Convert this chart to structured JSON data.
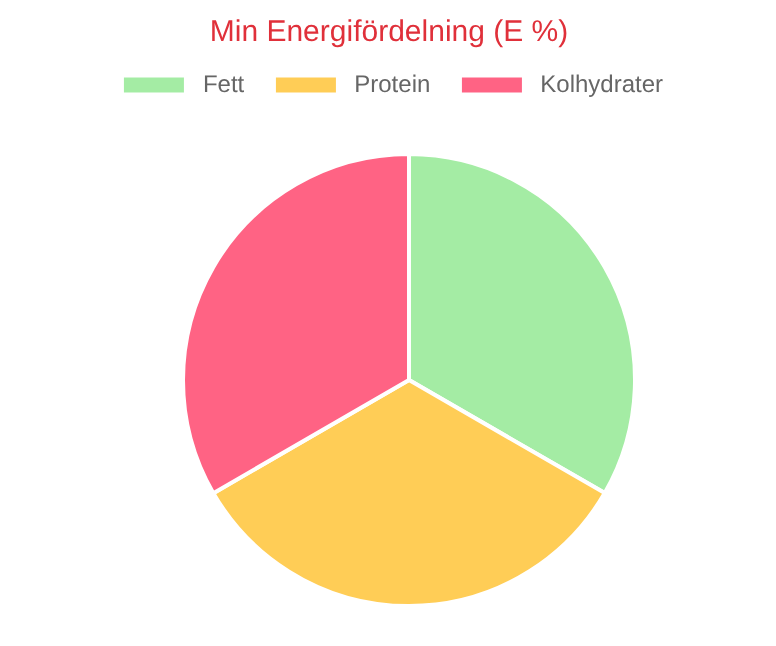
{
  "chart_data": {
    "type": "pie",
    "title": "Min Energifördelning (E %)",
    "categories": [
      "Fett",
      "Protein",
      "Kolhydrater"
    ],
    "values": [
      33.33,
      33.33,
      33.34
    ],
    "colors": [
      "#a4eca4",
      "#ffcd56",
      "#ff6384"
    ],
    "legend": "top"
  }
}
